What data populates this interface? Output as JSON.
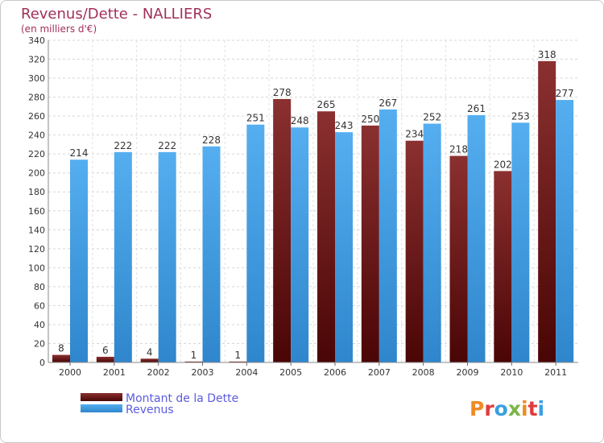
{
  "chart_data": {
    "type": "bar",
    "title": "Revenus/Dette - NALLIERS",
    "subtitle": "(en milliers d'€)",
    "categories": [
      "2000",
      "2001",
      "2002",
      "2003",
      "2004",
      "2005",
      "2006",
      "2007",
      "2008",
      "2009",
      "2010",
      "2011"
    ],
    "series": [
      {
        "name": "Montant de la Dette",
        "color": "#8b2a2a",
        "values": [
          8,
          6,
          4,
          1,
          1,
          278,
          265,
          250,
          234,
          218,
          202,
          318
        ]
      },
      {
        "name": "Revenus",
        "color": "#4aa3e8",
        "values": [
          214,
          222,
          222,
          228,
          251,
          248,
          243,
          267,
          252,
          261,
          253,
          277
        ]
      }
    ],
    "ylim": [
      0,
      340
    ],
    "ytick_step": 20,
    "grid": true,
    "legend": "bottom-left"
  },
  "logo": {
    "text": "Proxiti",
    "colors": [
      "#f08a24",
      "#e03c3c",
      "#3aa0e0",
      "#7ab648"
    ]
  }
}
